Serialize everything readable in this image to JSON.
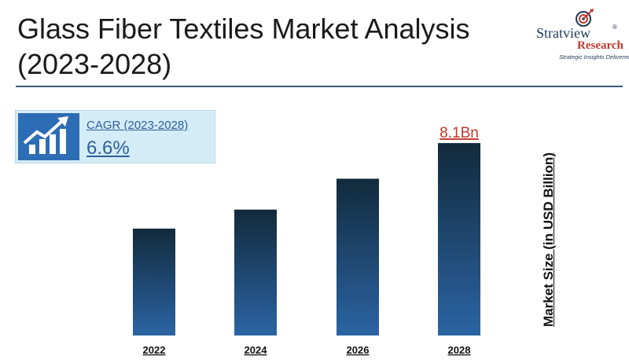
{
  "header": {
    "title_line1": "Glass Fiber Textiles Market Analysis",
    "title_line2": "(2023-2028)"
  },
  "logo": {
    "brand": "Stratview",
    "reg": "®",
    "research": "Research",
    "tagline": "Strategic Insights Delivered"
  },
  "cagr": {
    "label": "CAGR (2023-2028)",
    "value": "6.6%",
    "icon": "growth-chart-icon"
  },
  "colors": {
    "bar_top": "#122a3c",
    "bar_bottom": "#2b64a3",
    "highlight_label": "#c0392b",
    "cagr_bg": "#d4ecf8",
    "accent": "#2d6db5"
  },
  "chart_data": {
    "type": "bar",
    "categories": [
      "2022",
      "2024",
      "2026",
      "2028"
    ],
    "values": [
      4.5,
      5.3,
      6.6,
      8.1
    ],
    "data_labels": [
      "",
      "",
      "",
      "8.1Bn"
    ],
    "title": "",
    "xlabel": "",
    "ylabel": "Market Size (in USD Billion)",
    "ylim": [
      0,
      8.5
    ],
    "grid": false,
    "legend": "none"
  }
}
